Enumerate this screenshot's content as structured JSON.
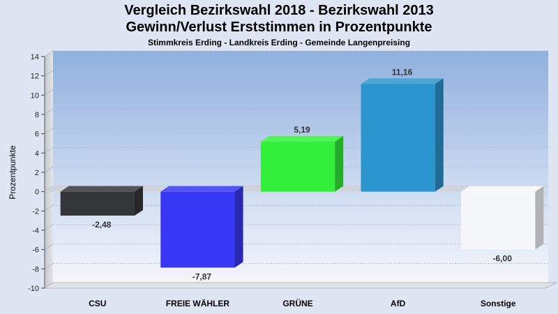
{
  "chart_data": {
    "type": "bar",
    "title": [
      "Vergleich Bezirkswahl 2018 - Bezirkswahl 2013",
      "Gewinn/Verlust Erststimmen in Prozentpunkte"
    ],
    "subtitle": "Stimmkreis Erding - Landkreis Erding - Gemeinde Langenpreising",
    "xlabel": "",
    "ylabel": "Prozentpunkte",
    "ylim": [
      -10,
      14
    ],
    "yticks": [
      14,
      12,
      10,
      8,
      6,
      4,
      2,
      0,
      -2,
      -4,
      -6,
      -8,
      -10
    ],
    "categories": [
      "CSU",
      "FREIE WÄHLER",
      "GRÜNE",
      "AfD",
      "Sonstige"
    ],
    "values": [
      -2.48,
      -7.87,
      5.19,
      11.16,
      -6.0
    ],
    "value_labels": [
      "-2,48",
      "-7,87",
      "5,19",
      "11,16",
      "-6,00"
    ],
    "colors": [
      "#34363a",
      "#3737f5",
      "#33f03a",
      "#2b95cf",
      "#f5f7fb"
    ],
    "grid": true,
    "legend": "none"
  }
}
